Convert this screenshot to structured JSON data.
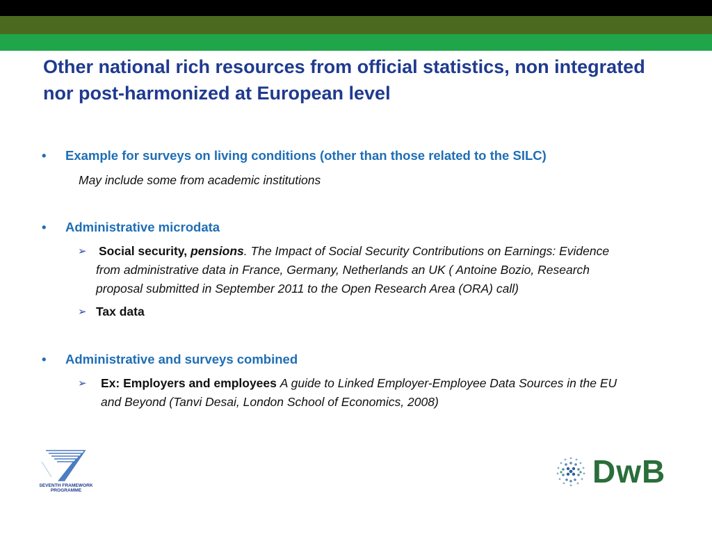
{
  "title": "Other national rich resources from official statistics, non integrated nor post-harmonized at European level",
  "bullets": [
    {
      "text": "Example for surveys on living conditions (other than those related to the SILC)",
      "note": "May include some from academic institutions"
    },
    {
      "text": "Administrative microdata",
      "items": [
        {
          "bold": "Social security, ",
          "bold_italic": "pensions",
          "plain": ". ",
          "italic_line1": "The Impact of Social Security Contributions on Earnings: Evidence",
          "italic_line2": "from  administrative data in France, Germany, Netherlands an UK ( Antoine Bozio, Research",
          "italic_line3": "proposal submitted in September 2011 to the Open Research Area (ORA) call)"
        },
        {
          "bold": "Tax data"
        }
      ]
    },
    {
      "text": "Administrative and surveys combined",
      "items": [
        {
          "bold": "Ex: Employers and employees ",
          "italic_line1": "A guide to Linked Employer-Employee Data Sources in the EU",
          "italic_line2": "and Beyond (Tanvi Desai, London School of Economics, 2008)"
        }
      ]
    }
  ],
  "logos": {
    "fp7_line1": "SEVENTH FRAMEWORK",
    "fp7_line2": "PROGRAMME",
    "dwb": "DwB"
  },
  "colors": {
    "title": "#1f3a8f",
    "bullet": "#1e6eb5",
    "band_olive": "#4b6a1f",
    "band_green": "#1fa54a",
    "dwb": "#2a6e3a"
  }
}
